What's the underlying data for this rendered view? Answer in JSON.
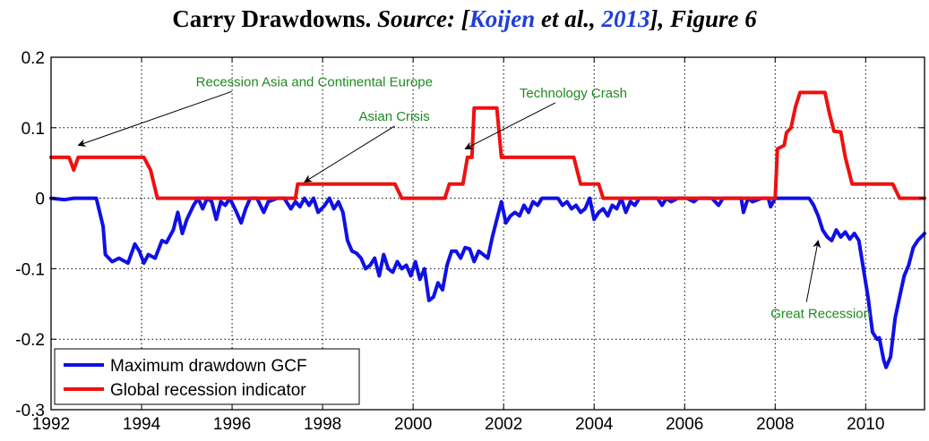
{
  "title": {
    "bold": "Carry Drawdowns.",
    "source_label": "Source: [",
    "author": "Koijen",
    "etal": " et al., ",
    "year": "2013",
    "figure": "], Figure 6"
  },
  "colors": {
    "drawdown": "#1010e6",
    "recession": "#ee1111",
    "annotation": "#1e8a1e",
    "title_link": "#1f3fd6"
  },
  "chart_data": {
    "type": "line",
    "xlim": [
      1992,
      2011.3
    ],
    "ylim": [
      -0.3,
      0.2
    ],
    "xticks": [
      1992,
      1994,
      1996,
      1998,
      2000,
      2002,
      2004,
      2006,
      2008,
      2010
    ],
    "xtick_labels": [
      "1992",
      "1994",
      "1996",
      "1998",
      "2000",
      "2002",
      "2004",
      "2006",
      "2008",
      "2010"
    ],
    "yticks": [
      0.2,
      0.1,
      0,
      -0.1,
      -0.2,
      -0.3
    ],
    "ytick_labels": [
      "0.2",
      "0.1",
      "0",
      "-0.1",
      "-0.2",
      "-0.3"
    ],
    "grid": true,
    "legend_position": "bottom-left",
    "series": [
      {
        "name": "Maximum drawdown GCF",
        "points": [
          [
            1992.0,
            0
          ],
          [
            1992.3,
            -0.002
          ],
          [
            1992.5,
            0
          ],
          [
            1993.0,
            0
          ],
          [
            1993.15,
            -0.04
          ],
          [
            1993.2,
            -0.08
          ],
          [
            1993.35,
            -0.09
          ],
          [
            1993.5,
            -0.085
          ],
          [
            1993.7,
            -0.092
          ],
          [
            1993.85,
            -0.065
          ],
          [
            1993.95,
            -0.075
          ],
          [
            1994.05,
            -0.092
          ],
          [
            1994.15,
            -0.08
          ],
          [
            1994.3,
            -0.085
          ],
          [
            1994.45,
            -0.06
          ],
          [
            1994.55,
            -0.063
          ],
          [
            1994.7,
            -0.045
          ],
          [
            1994.8,
            -0.02
          ],
          [
            1994.9,
            -0.05
          ],
          [
            1995.0,
            -0.03
          ],
          [
            1995.15,
            -0.01
          ],
          [
            1995.25,
            0
          ],
          [
            1995.35,
            -0.015
          ],
          [
            1995.45,
            0
          ],
          [
            1995.55,
            -0.005
          ],
          [
            1995.65,
            -0.03
          ],
          [
            1995.75,
            -0.005
          ],
          [
            1995.85,
            -0.01
          ],
          [
            1995.95,
            0
          ],
          [
            1996.1,
            -0.02
          ],
          [
            1996.2,
            -0.035
          ],
          [
            1996.3,
            -0.015
          ],
          [
            1996.4,
            0
          ],
          [
            1996.55,
            0
          ],
          [
            1996.7,
            -0.02
          ],
          [
            1996.8,
            -0.005
          ],
          [
            1997.0,
            0
          ],
          [
            1997.15,
            0
          ],
          [
            1997.3,
            -0.015
          ],
          [
            1997.4,
            -0.005
          ],
          [
            1997.5,
            -0.012
          ],
          [
            1997.6,
            0
          ],
          [
            1997.7,
            -0.01
          ],
          [
            1997.8,
            0
          ],
          [
            1997.9,
            -0.02
          ],
          [
            1998.05,
            -0.01
          ],
          [
            1998.15,
            0
          ],
          [
            1998.25,
            -0.015
          ],
          [
            1998.35,
            -0.005
          ],
          [
            1998.45,
            -0.02
          ],
          [
            1998.55,
            -0.06
          ],
          [
            1998.65,
            -0.075
          ],
          [
            1998.75,
            -0.078
          ],
          [
            1998.85,
            -0.085
          ],
          [
            1998.95,
            -0.1
          ],
          [
            1999.05,
            -0.095
          ],
          [
            1999.15,
            -0.085
          ],
          [
            1999.25,
            -0.11
          ],
          [
            1999.35,
            -0.08
          ],
          [
            1999.45,
            -0.1
          ],
          [
            1999.55,
            -0.105
          ],
          [
            1999.65,
            -0.09
          ],
          [
            1999.75,
            -0.1
          ],
          [
            1999.85,
            -0.095
          ],
          [
            1999.95,
            -0.11
          ],
          [
            2000.05,
            -0.09
          ],
          [
            2000.15,
            -0.115
          ],
          [
            2000.25,
            -0.1
          ],
          [
            2000.35,
            -0.145
          ],
          [
            2000.45,
            -0.14
          ],
          [
            2000.55,
            -0.12
          ],
          [
            2000.65,
            -0.13
          ],
          [
            2000.75,
            -0.095
          ],
          [
            2000.85,
            -0.075
          ],
          [
            2000.95,
            -0.075
          ],
          [
            2001.05,
            -0.085
          ],
          [
            2001.15,
            -0.07
          ],
          [
            2001.25,
            -0.072
          ],
          [
            2001.35,
            -0.09
          ],
          [
            2001.45,
            -0.075
          ],
          [
            2001.55,
            -0.08
          ],
          [
            2001.65,
            -0.085
          ],
          [
            2001.75,
            -0.055
          ],
          [
            2001.85,
            -0.03
          ],
          [
            2001.95,
            -0.005
          ],
          [
            2002.05,
            -0.035
          ],
          [
            2002.15,
            -0.025
          ],
          [
            2002.25,
            -0.02
          ],
          [
            2002.35,
            -0.025
          ],
          [
            2002.45,
            -0.01
          ],
          [
            2002.55,
            -0.02
          ],
          [
            2002.65,
            -0.005
          ],
          [
            2002.75,
            -0.01
          ],
          [
            2002.85,
            0
          ],
          [
            2003.0,
            0
          ],
          [
            2003.2,
            0
          ],
          [
            2003.3,
            -0.01
          ],
          [
            2003.4,
            -0.005
          ],
          [
            2003.5,
            -0.015
          ],
          [
            2003.6,
            -0.01
          ],
          [
            2003.7,
            -0.02
          ],
          [
            2003.8,
            -0.015
          ],
          [
            2003.9,
            0
          ],
          [
            2004.0,
            -0.03
          ],
          [
            2004.1,
            -0.02
          ],
          [
            2004.2,
            -0.015
          ],
          [
            2004.3,
            -0.025
          ],
          [
            2004.4,
            -0.01
          ],
          [
            2004.5,
            -0.015
          ],
          [
            2004.6,
            0
          ],
          [
            2004.7,
            -0.02
          ],
          [
            2004.8,
            -0.005
          ],
          [
            2004.9,
            -0.01
          ],
          [
            2005.0,
            0
          ],
          [
            2005.2,
            0
          ],
          [
            2005.4,
            0
          ],
          [
            2005.5,
            -0.01
          ],
          [
            2005.6,
            0
          ],
          [
            2005.7,
            -0.005
          ],
          [
            2005.85,
            0
          ],
          [
            2006.05,
            0
          ],
          [
            2006.2,
            -0.005
          ],
          [
            2006.3,
            0
          ],
          [
            2006.6,
            0
          ],
          [
            2006.75,
            -0.01
          ],
          [
            2006.85,
            0
          ],
          [
            2007.0,
            0
          ],
          [
            2007.25,
            0
          ],
          [
            2007.3,
            -0.02
          ],
          [
            2007.4,
            0
          ],
          [
            2007.5,
            -0.005
          ],
          [
            2007.7,
            0
          ],
          [
            2007.85,
            0
          ],
          [
            2007.9,
            -0.012
          ],
          [
            2008.0,
            0
          ],
          [
            2008.2,
            0
          ],
          [
            2008.5,
            0
          ],
          [
            2008.75,
            0
          ],
          [
            2008.85,
            -0.01
          ],
          [
            2008.95,
            -0.025
          ],
          [
            2009.05,
            -0.045
          ],
          [
            2009.15,
            -0.055
          ],
          [
            2009.25,
            -0.06
          ],
          [
            2009.35,
            -0.045
          ],
          [
            2009.45,
            -0.055
          ],
          [
            2009.55,
            -0.048
          ],
          [
            2009.65,
            -0.058
          ],
          [
            2009.75,
            -0.05
          ],
          [
            2009.85,
            -0.06
          ],
          [
            2009.95,
            -0.1
          ],
          [
            2010.05,
            -0.14
          ],
          [
            2010.15,
            -0.19
          ],
          [
            2010.25,
            -0.2
          ],
          [
            2010.3,
            -0.198
          ],
          [
            2010.4,
            -0.23
          ],
          [
            2010.45,
            -0.24
          ],
          [
            2010.55,
            -0.225
          ],
          [
            2010.65,
            -0.17
          ],
          [
            2010.75,
            -0.14
          ],
          [
            2010.85,
            -0.11
          ],
          [
            2010.95,
            -0.095
          ],
          [
            2011.05,
            -0.07
          ],
          [
            2011.15,
            -0.06
          ],
          [
            2011.3,
            -0.05
          ]
        ]
      },
      {
        "name": "Global recession indicator",
        "points": [
          [
            1992.0,
            0.058
          ],
          [
            1992.4,
            0.058
          ],
          [
            1992.5,
            0.04
          ],
          [
            1992.6,
            0.058
          ],
          [
            1993.8,
            0.058
          ],
          [
            1994.05,
            0.058
          ],
          [
            1994.2,
            0.04
          ],
          [
            1994.35,
            0.0
          ],
          [
            1997.4,
            0.0
          ],
          [
            1997.45,
            0.02
          ],
          [
            1999.6,
            0.02
          ],
          [
            1999.75,
            0.0
          ],
          [
            2000.7,
            0.0
          ],
          [
            2000.8,
            0.02
          ],
          [
            2001.1,
            0.02
          ],
          [
            2001.2,
            0.058
          ],
          [
            2001.3,
            0.058
          ],
          [
            2001.35,
            0.128
          ],
          [
            2001.85,
            0.128
          ],
          [
            2001.95,
            0.058
          ],
          [
            2003.55,
            0.058
          ],
          [
            2003.7,
            0.02
          ],
          [
            2004.1,
            0.02
          ],
          [
            2004.2,
            0.0
          ],
          [
            2008.0,
            0.0
          ],
          [
            2008.05,
            0.07
          ],
          [
            2008.2,
            0.075
          ],
          [
            2008.25,
            0.093
          ],
          [
            2008.35,
            0.1
          ],
          [
            2008.45,
            0.13
          ],
          [
            2008.55,
            0.15
          ],
          [
            2009.1,
            0.15
          ],
          [
            2009.2,
            0.12
          ],
          [
            2009.3,
            0.095
          ],
          [
            2009.45,
            0.094
          ],
          [
            2009.55,
            0.058
          ],
          [
            2009.7,
            0.02
          ],
          [
            2010.6,
            0.02
          ],
          [
            2010.75,
            0.0
          ],
          [
            2011.3,
            0.0
          ]
        ]
      }
    ],
    "annotations": [
      {
        "text": "Recession Asia and Continental Europe",
        "x": 1995.2,
        "y": 0.159,
        "arrow_to": [
          1992.6,
          0.075
        ],
        "anchor": "start"
      },
      {
        "text": "Asian Crisis",
        "x": 1998.8,
        "y": 0.11,
        "arrow_to": [
          1997.6,
          0.023
        ],
        "anchor": "start"
      },
      {
        "text": "Technology Crash",
        "x": 2002.35,
        "y": 0.143,
        "arrow_to": [
          2001.15,
          0.07
        ],
        "anchor": "start"
      },
      {
        "text": "Great Recession",
        "x": 2007.9,
        "y": -0.17,
        "arrow_to": [
          2008.95,
          -0.06
        ],
        "anchor": "start"
      }
    ]
  }
}
